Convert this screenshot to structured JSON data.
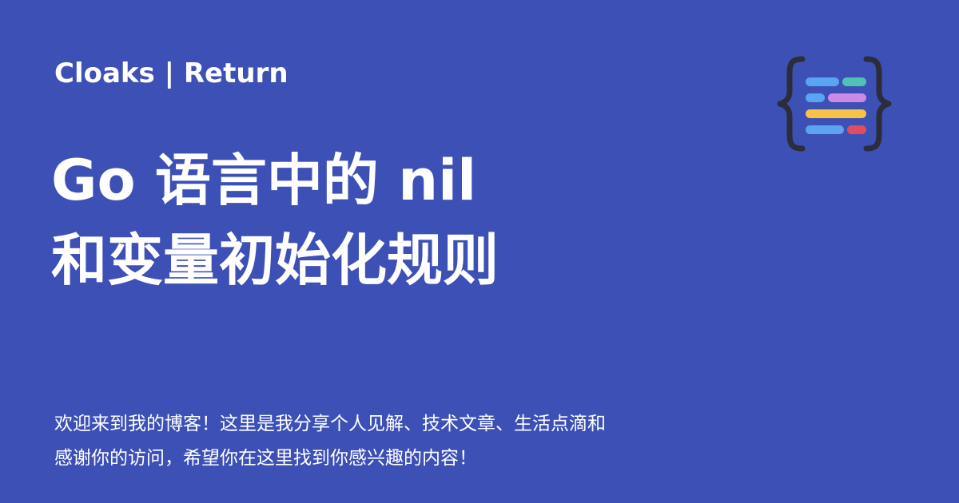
{
  "colors": {
    "background": "#3d50b6",
    "text": "#ffffff",
    "logo_brace": "#2b2d3a",
    "logo_bar_blue": "#5aa4f2",
    "logo_bar_teal": "#52c0b4",
    "logo_bar_purple": "#c98be6",
    "logo_bar_yellow": "#f6c344",
    "logo_bar_red": "#e04d5e"
  },
  "header": {
    "site_name": "Cloaks | Return"
  },
  "logo": {
    "icon": "code-braces-bars-icon"
  },
  "post": {
    "title_lines": [
      "Go 语言中的 nil",
      "和变量初始化规则"
    ]
  },
  "footer": {
    "description_lines": [
      "欢迎来到我的博客！这里是我分享个人见解、技术文章、生活点滴和",
      "感谢你的访问，希望你在这里找到你感兴趣的内容！"
    ]
  }
}
